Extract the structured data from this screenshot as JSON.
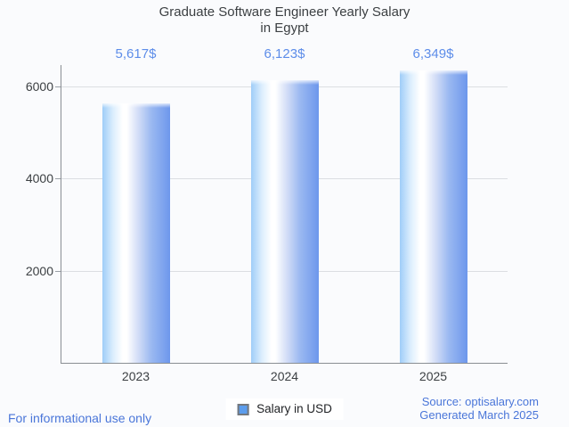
{
  "page": {
    "background": "#fafbfd"
  },
  "chart_data": {
    "type": "bar",
    "title": "Graduate Software Engineer Yearly Salary in Egypt",
    "title_lines": [
      "Graduate Software Engineer Yearly Salary",
      "in Egypt"
    ],
    "categories": [
      "2023",
      "2024",
      "2025"
    ],
    "series": [
      {
        "name": "Salary in USD",
        "values": [
          5617,
          6123,
          6349
        ]
      }
    ],
    "value_labels": [
      "5,617$",
      "6,123$",
      "6,349$"
    ],
    "xlabel": "",
    "ylabel": "",
    "y_ticks": [
      2000,
      4000,
      6000
    ],
    "ylim": [
      0,
      6456
    ],
    "grid": true,
    "legend_position": "bottom",
    "bar_color": "#6d97ec",
    "bar_gradient_stops": [
      "#9fcdf8 0%",
      "#dceefd 16%",
      "#ffffff 30%",
      "#ffffff 36%",
      "#cdd9f6 55%",
      "#9bb9f1 72%",
      "#6d97ec 100%"
    ]
  },
  "legend": {
    "label": "Salary in USD",
    "swatch_color": "#5c9ded",
    "swatch_border": "#74787d"
  },
  "footer": {
    "left_note": "For informational use only",
    "source": "Source: optisalary.com",
    "generated": "Generated March 2025"
  },
  "colors": {
    "value_label": "#5d8de9",
    "footer_text": "#4a76d9",
    "axis": "#898e93",
    "gridline": "#dcdee2",
    "text_dark": "#3c4043"
  }
}
